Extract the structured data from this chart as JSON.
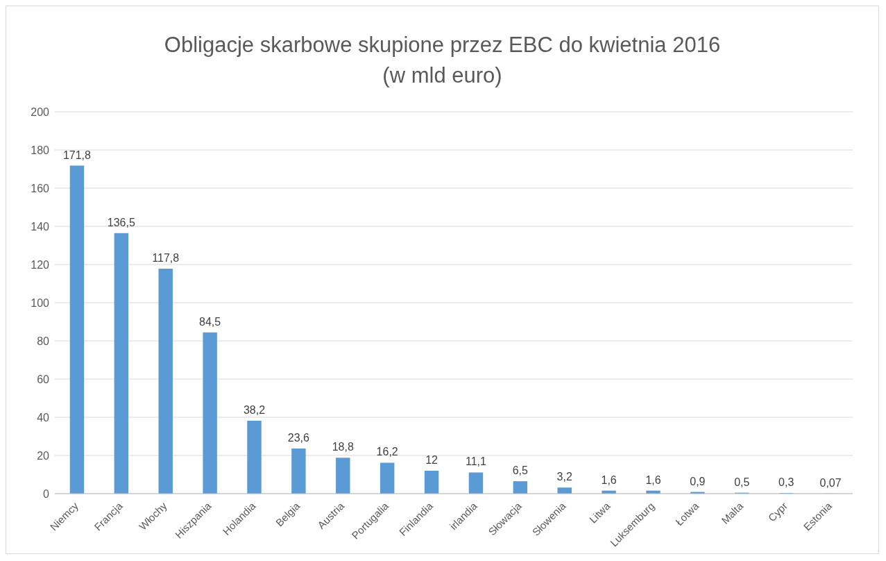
{
  "chart_data": {
    "type": "bar",
    "title": "Obligacje skarbowe skupione przez EBC do kwietnia 2016",
    "subtitle": "(w mld euro)",
    "categories": [
      "Niemcy",
      "Francja",
      "Włochy",
      "Hiszpania",
      "Holandia",
      "Belgia",
      "Austria",
      "Portugalia",
      "Finlandia",
      "irlandia",
      "Słowacja",
      "Słowenia",
      "Litwa",
      "Luksemburg",
      "Łotwa",
      "Malta",
      "Cypr",
      "Estonia"
    ],
    "values": [
      171.8,
      136.5,
      117.8,
      84.5,
      38.2,
      23.6,
      18.8,
      16.2,
      12,
      11.1,
      6.5,
      3.2,
      1.6,
      1.6,
      0.9,
      0.5,
      0.3,
      0.07
    ],
    "value_labels": [
      "171,8",
      "136,5",
      "117,8",
      "84,5",
      "38,2",
      "23,6",
      "18,8",
      "16,2",
      "12",
      "11,1",
      "6,5",
      "3,2",
      "1,6",
      "1,6",
      "0,9",
      "0,5",
      "0,3",
      "0,07"
    ],
    "color": "#5b9bd5",
    "ylim": [
      0,
      200
    ],
    "yticks": [
      0,
      20,
      40,
      60,
      80,
      100,
      120,
      140,
      160,
      180,
      200
    ],
    "grid": "y",
    "legend": false
  }
}
